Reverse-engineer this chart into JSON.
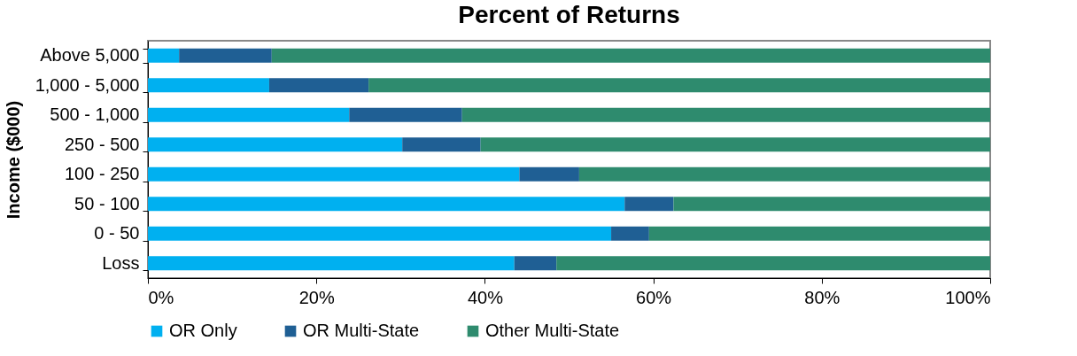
{
  "chart_data": {
    "type": "bar",
    "orientation": "horizontal",
    "stacked": true,
    "title": "Percent of Returns",
    "ylabel": "Income ($000)",
    "categories": [
      "Above 5,000",
      "1,000 - 5,000",
      "500 - 1,000",
      "250 -  500",
      "100 -  250",
      "50 -  100",
      "0 -   50",
      "Loss"
    ],
    "series": [
      {
        "name": "OR Only",
        "color": "#00b0f0",
        "values": [
          3.7,
          14.4,
          23.9,
          30.2,
          44.1,
          56.6,
          55.0,
          43.5
        ]
      },
      {
        "name": "OR Multi-State",
        "color": "#1f5f94",
        "values": [
          11.0,
          11.8,
          13.4,
          9.3,
          7.1,
          5.8,
          4.5,
          5.0
        ]
      },
      {
        "name": "Other Multi-State",
        "color": "#2e8b6e",
        "values": [
          85.3,
          73.8,
          62.7,
          60.5,
          48.8,
          37.6,
          40.5,
          51.5
        ]
      }
    ],
    "xlim": [
      0,
      100
    ],
    "xticks": [
      {
        "value": 0,
        "label": "0%"
      },
      {
        "value": 20,
        "label": "20%"
      },
      {
        "value": 40,
        "label": "40%"
      },
      {
        "value": 60,
        "label": "60%"
      },
      {
        "value": 80,
        "label": "80%"
      },
      {
        "value": 100,
        "label": "100%"
      }
    ],
    "legend": "bottom",
    "grid": false
  }
}
